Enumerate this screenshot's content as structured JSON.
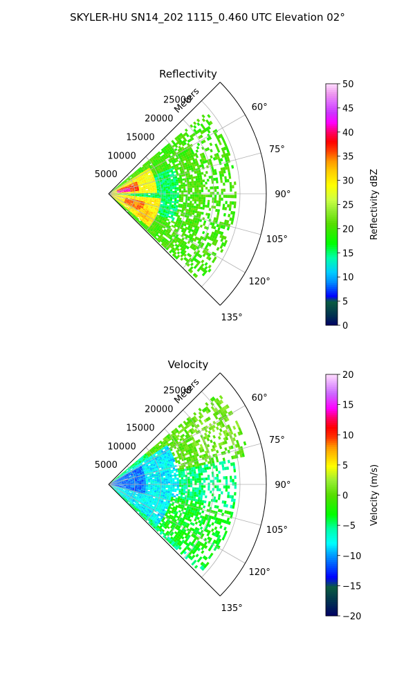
{
  "figure_title": "SKYLER-HU  SN14_202  1115_0.460 UTC Elevation 02°",
  "colors": {
    "background": "#ffffff",
    "grid": "#b0b0b0",
    "frame": "#000000"
  },
  "chart_data": [
    {
      "type": "heatmap",
      "subtype": "polar-sector",
      "title": "Reflectivity",
      "radial_label": "Meters",
      "radial_ticks": [
        5000,
        10000,
        15000,
        20000,
        25000
      ],
      "radial_range": [
        0,
        30000
      ],
      "angle_ticks": [
        "60°",
        "75°",
        "90°",
        "105°",
        "120°",
        "135°"
      ],
      "angle_range_deg": [
        45,
        135
      ],
      "colorbar_label": "Reflectivity dBZ",
      "colorbar_ticks": [
        0,
        5,
        10,
        15,
        20,
        25,
        30,
        35,
        40,
        45,
        50
      ],
      "colorbar_range": [
        0,
        50
      ],
      "colormap": "NWSRef",
      "echo_regions": [
        {
          "azimuth_deg": [
            50,
            134
          ],
          "range_m": [
            0,
            24000
          ],
          "value": 20
        },
        {
          "azimuth_deg": [
            68,
            112
          ],
          "range_m": [
            4000,
            13000
          ],
          "value": 15
        },
        {
          "azimuth_deg": [
            57,
            88
          ],
          "range_m": [
            0,
            9000
          ],
          "value": 29
        },
        {
          "azimuth_deg": [
            94,
            128
          ],
          "range_m": [
            0,
            10000
          ],
          "value": 30
        },
        {
          "azimuth_deg": [
            66,
            84
          ],
          "range_m": [
            1500,
            5500
          ],
          "value": 36
        },
        {
          "azimuth_deg": [
            72,
            84
          ],
          "range_m": [
            1500,
            3800
          ],
          "value": 41
        },
        {
          "azimuth_deg": [
            102,
            118
          ],
          "range_m": [
            3000,
            7000
          ],
          "value": 35
        },
        {
          "azimuth_deg": [
            112,
            124
          ],
          "range_m": [
            6500,
            9000
          ],
          "value": 32
        }
      ]
    },
    {
      "type": "heatmap",
      "subtype": "polar-sector",
      "title": "Velocity",
      "radial_label": "Meters",
      "radial_ticks": [
        5000,
        10000,
        15000,
        20000,
        25000
      ],
      "radial_range": [
        0,
        30000
      ],
      "angle_ticks": [
        "60°",
        "75°",
        "90°",
        "105°",
        "120°",
        "135°"
      ],
      "angle_range_deg": [
        45,
        135
      ],
      "colorbar_label": "Velocity (m/s)",
      "colorbar_ticks": [
        -20,
        -15,
        -10,
        -5,
        0,
        5,
        10,
        15,
        20
      ],
      "colorbar_range": [
        -20,
        20
      ],
      "colormap": "NWSVel",
      "echo_regions": [
        {
          "azimuth_deg": [
            50,
            134
          ],
          "range_m": [
            0,
            24000
          ],
          "value": -5
        },
        {
          "azimuth_deg": [
            50,
            78
          ],
          "range_m": [
            9000,
            27000
          ],
          "value": 0
        },
        {
          "azimuth_deg": [
            52,
            72
          ],
          "range_m": [
            18000,
            27000
          ],
          "value": 1
        },
        {
          "azimuth_deg": [
            55,
            128
          ],
          "range_m": [
            0,
            13000
          ],
          "value": -8
        },
        {
          "azimuth_deg": [
            60,
            105
          ],
          "range_m": [
            0,
            7000
          ],
          "value": -11
        },
        {
          "azimuth_deg": [
            100,
            130
          ],
          "range_m": [
            12000,
            24000
          ],
          "value": -3
        }
      ]
    }
  ]
}
